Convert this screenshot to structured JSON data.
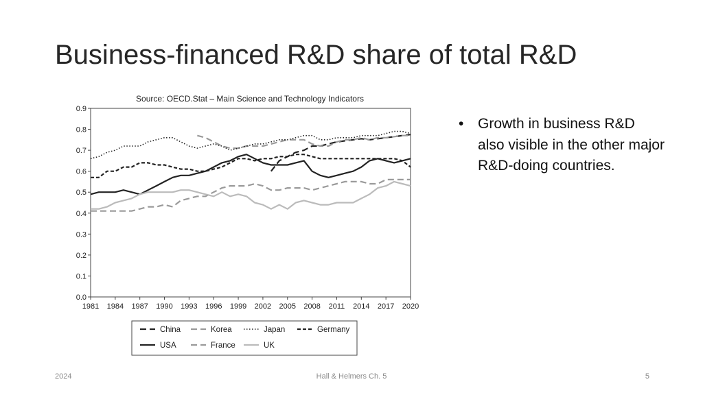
{
  "slide": {
    "title": "Business-financed R&D share of total R&D",
    "bullet": "Growth in business R&D also visible in the other major R&D-doing countries.",
    "footer_left": "2024",
    "footer_center": "Hall & Helmers Ch. 5",
    "footer_right": "5"
  },
  "chart_data": {
    "type": "line",
    "title": "Source: OECD.Stat – Main Science and Technology Indicators",
    "xlabel": "",
    "ylabel": "",
    "xlim": [
      1981,
      2020
    ],
    "ylim": [
      0,
      0.9
    ],
    "x_ticks": [
      "1981",
      "1984",
      "1987",
      "1990",
      "1993",
      "1996",
      "1999",
      "2002",
      "2005",
      "2008",
      "2011",
      "2014",
      "2017",
      "2020"
    ],
    "y_ticks": [
      "0.0",
      "0.1",
      "0.2",
      "0.3",
      "0.4",
      "0.5",
      "0.6",
      "0.7",
      "0.8",
      "0.9"
    ],
    "grid": false,
    "legend_position": "bottom",
    "series": [
      {
        "name": "China",
        "color": "#222222",
        "style": "dash",
        "x": [
          2003,
          2004,
          2005,
          2006,
          2007,
          2008,
          2009,
          2010,
          2011,
          2012,
          2013,
          2014,
          2015,
          2016,
          2017,
          2018,
          2019,
          2020
        ],
        "y": [
          0.6,
          0.65,
          0.67,
          0.69,
          0.7,
          0.72,
          0.72,
          0.73,
          0.74,
          0.745,
          0.75,
          0.755,
          0.75,
          0.755,
          0.76,
          0.765,
          0.77,
          0.775
        ]
      },
      {
        "name": "Korea",
        "color": "#9a9a9a",
        "style": "dash",
        "x": [
          1994,
          1995,
          1996,
          1997,
          1998,
          1999,
          2000,
          2001,
          2002,
          2003,
          2004,
          2005,
          2006,
          2007,
          2008,
          2009,
          2010,
          2011,
          2012,
          2013,
          2014,
          2015,
          2016,
          2017,
          2018,
          2019,
          2020
        ],
        "y": [
          0.77,
          0.76,
          0.74,
          0.72,
          0.71,
          0.71,
          0.72,
          0.72,
          0.72,
          0.73,
          0.74,
          0.75,
          0.75,
          0.75,
          0.73,
          0.72,
          0.72,
          0.74,
          0.75,
          0.75,
          0.76,
          0.75,
          0.76,
          0.76,
          0.765,
          0.77,
          0.77
        ]
      },
      {
        "name": "Japan",
        "color": "#222222",
        "style": "dot",
        "x": [
          1981,
          1982,
          1983,
          1984,
          1985,
          1986,
          1987,
          1988,
          1989,
          1990,
          1991,
          1992,
          1993,
          1994,
          1995,
          1996,
          1997,
          1998,
          1999,
          2000,
          2001,
          2002,
          2003,
          2004,
          2005,
          2006,
          2007,
          2008,
          2009,
          2010,
          2011,
          2012,
          2013,
          2014,
          2015,
          2016,
          2017,
          2018,
          2019,
          2020
        ],
        "y": [
          0.66,
          0.67,
          0.69,
          0.7,
          0.72,
          0.72,
          0.72,
          0.74,
          0.75,
          0.76,
          0.76,
          0.74,
          0.72,
          0.71,
          0.72,
          0.73,
          0.72,
          0.7,
          0.71,
          0.72,
          0.73,
          0.73,
          0.74,
          0.75,
          0.75,
          0.76,
          0.77,
          0.77,
          0.75,
          0.75,
          0.76,
          0.76,
          0.76,
          0.77,
          0.77,
          0.77,
          0.78,
          0.79,
          0.79,
          0.78
        ]
      },
      {
        "name": "Germany",
        "color": "#222222",
        "style": "shortdash",
        "x": [
          1981,
          1982,
          1983,
          1984,
          1985,
          1986,
          1987,
          1988,
          1989,
          1990,
          1991,
          1992,
          1993,
          1994,
          1995,
          1996,
          1997,
          1998,
          1999,
          2000,
          2001,
          2002,
          2003,
          2004,
          2005,
          2006,
          2007,
          2008,
          2009,
          2010,
          2011,
          2012,
          2013,
          2014,
          2015,
          2016,
          2017,
          2018,
          2019,
          2020
        ],
        "y": [
          0.57,
          0.57,
          0.6,
          0.6,
          0.62,
          0.62,
          0.64,
          0.64,
          0.63,
          0.63,
          0.62,
          0.61,
          0.61,
          0.6,
          0.6,
          0.61,
          0.62,
          0.64,
          0.66,
          0.66,
          0.65,
          0.66,
          0.66,
          0.67,
          0.67,
          0.68,
          0.68,
          0.67,
          0.66,
          0.66,
          0.66,
          0.66,
          0.66,
          0.66,
          0.66,
          0.66,
          0.66,
          0.66,
          0.65,
          0.62
        ]
      },
      {
        "name": "USA",
        "color": "#222222",
        "style": "solid",
        "x": [
          1981,
          1982,
          1983,
          1984,
          1985,
          1986,
          1987,
          1988,
          1989,
          1990,
          1991,
          1992,
          1993,
          1994,
          1995,
          1996,
          1997,
          1998,
          1999,
          2000,
          2001,
          2002,
          2003,
          2004,
          2005,
          2006,
          2007,
          2008,
          2009,
          2010,
          2011,
          2012,
          2013,
          2014,
          2015,
          2016,
          2017,
          2018,
          2019,
          2020
        ],
        "y": [
          0.49,
          0.5,
          0.5,
          0.5,
          0.51,
          0.5,
          0.49,
          0.51,
          0.53,
          0.55,
          0.57,
          0.58,
          0.58,
          0.59,
          0.6,
          0.62,
          0.64,
          0.65,
          0.67,
          0.68,
          0.66,
          0.64,
          0.63,
          0.63,
          0.63,
          0.64,
          0.65,
          0.6,
          0.58,
          0.57,
          0.58,
          0.59,
          0.6,
          0.62,
          0.65,
          0.66,
          0.65,
          0.64,
          0.65,
          0.66
        ]
      },
      {
        "name": "France",
        "color": "#9a9a9a",
        "style": "dash",
        "x": [
          1981,
          1982,
          1983,
          1984,
          1985,
          1986,
          1987,
          1988,
          1989,
          1990,
          1991,
          1992,
          1993,
          1994,
          1995,
          1996,
          1997,
          1998,
          1999,
          2000,
          2001,
          2002,
          2003,
          2004,
          2005,
          2006,
          2007,
          2008,
          2009,
          2010,
          2011,
          2012,
          2013,
          2014,
          2015,
          2016,
          2017,
          2018,
          2019,
          2020
        ],
        "y": [
          0.41,
          0.41,
          0.41,
          0.41,
          0.41,
          0.41,
          0.42,
          0.43,
          0.43,
          0.44,
          0.43,
          0.46,
          0.47,
          0.48,
          0.48,
          0.5,
          0.52,
          0.53,
          0.53,
          0.53,
          0.54,
          0.53,
          0.51,
          0.51,
          0.52,
          0.52,
          0.52,
          0.51,
          0.52,
          0.53,
          0.54,
          0.55,
          0.55,
          0.55,
          0.54,
          0.54,
          0.56,
          0.56,
          0.56,
          0.56
        ]
      },
      {
        "name": "UK",
        "color": "#bbbbbb",
        "style": "solid",
        "x": [
          1981,
          1982,
          1983,
          1984,
          1985,
          1986,
          1987,
          1988,
          1989,
          1990,
          1991,
          1992,
          1993,
          1994,
          1995,
          1996,
          1997,
          1998,
          1999,
          2000,
          2001,
          2002,
          2003,
          2004,
          2005,
          2006,
          2007,
          2008,
          2009,
          2010,
          2011,
          2012,
          2013,
          2014,
          2015,
          2016,
          2017,
          2018,
          2019,
          2020
        ],
        "y": [
          0.42,
          0.42,
          0.43,
          0.45,
          0.46,
          0.47,
          0.49,
          0.5,
          0.5,
          0.5,
          0.5,
          0.51,
          0.51,
          0.5,
          0.49,
          0.48,
          0.5,
          0.48,
          0.49,
          0.48,
          0.45,
          0.44,
          0.42,
          0.44,
          0.42,
          0.45,
          0.46,
          0.45,
          0.44,
          0.44,
          0.45,
          0.45,
          0.45,
          0.47,
          0.49,
          0.52,
          0.53,
          0.55,
          0.54,
          0.53
        ]
      }
    ],
    "legend_rows": [
      [
        "China",
        "Korea",
        "Japan",
        "Germany"
      ],
      [
        "USA",
        "France",
        "UK"
      ]
    ]
  }
}
